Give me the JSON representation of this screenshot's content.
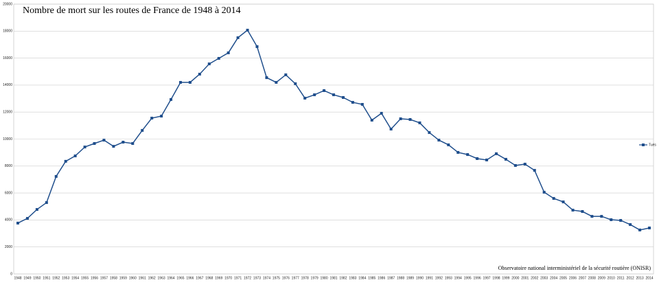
{
  "chart_data": {
    "type": "line",
    "title": "Nombre de mort sur les routes de France de 1948 à 2014",
    "source": "Observatoire national interministériel de la sécurité routière (ONISR)",
    "categories": [
      "1948",
      "1949",
      "1950",
      "1951",
      "1952",
      "1953",
      "1954",
      "1955",
      "1956",
      "1957",
      "1958",
      "1959",
      "1960",
      "1961",
      "1962",
      "1963",
      "1964",
      "1965",
      "1966",
      "1967",
      "1968",
      "1969",
      "1970",
      "1971",
      "1972",
      "1973",
      "1974",
      "1975",
      "1976",
      "1977",
      "1978",
      "1979",
      "1980",
      "1981",
      "1982",
      "1983",
      "1984",
      "1985",
      "1986",
      "1987",
      "1988",
      "1989",
      "1990",
      "1991",
      "1992",
      "1993",
      "1994",
      "1995",
      "1996",
      "1997",
      "1998",
      "1999",
      "2000",
      "2001",
      "2002",
      "2003",
      "2004",
      "2005",
      "2006",
      "2007",
      "2008",
      "2009",
      "2010",
      "2011",
      "2012",
      "2013",
      "2014"
    ],
    "series": [
      {
        "name": "Tués",
        "color": "#1f4e8c",
        "values": [
          3770,
          4120,
          4780,
          5290,
          7230,
          8350,
          8750,
          9410,
          9670,
          9920,
          9460,
          9770,
          9670,
          10640,
          11550,
          11700,
          12930,
          14200,
          14200,
          14810,
          15570,
          15980,
          16390,
          17510,
          18070,
          16850,
          14550,
          14200,
          14760,
          14100,
          13030,
          13280,
          13590,
          13280,
          13080,
          12720,
          12570,
          11400,
          11910,
          10740,
          11500,
          11450,
          11200,
          10480,
          9920,
          9570,
          9010,
          8850,
          8550,
          8450,
          8910,
          8500,
          8040,
          8140,
          7680,
          6060,
          5600,
          5340,
          4730,
          4630,
          4270,
          4270,
          4020,
          3970,
          3660,
          3260,
          3410
        ]
      }
    ],
    "ylim": [
      0,
      20000
    ],
    "yticks": [
      0,
      2000,
      4000,
      6000,
      8000,
      10000,
      12000,
      14000,
      16000,
      18000,
      20000
    ],
    "grid": true,
    "legend": "right"
  }
}
